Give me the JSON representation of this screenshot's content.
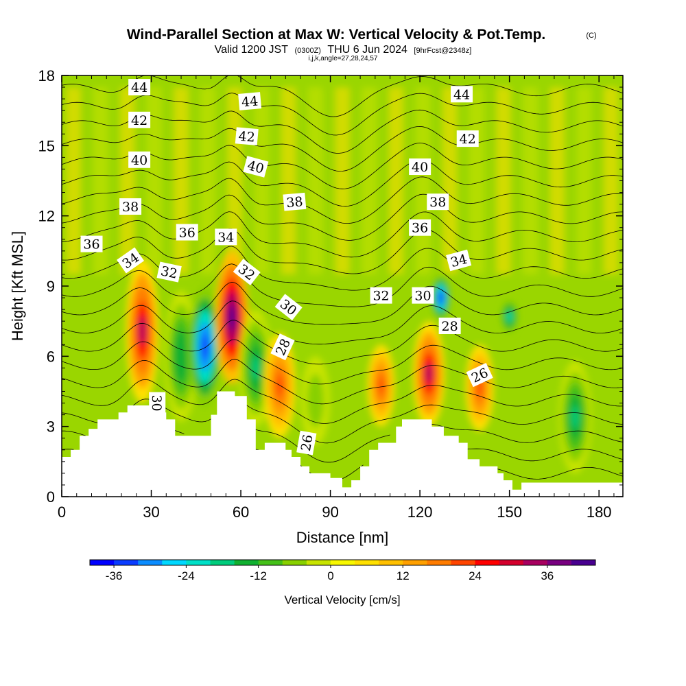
{
  "title": {
    "main": "Wind-Parallel Section at Max W: Vertical Velocity & Pot.Temp.",
    "copyright": "(C)",
    "valid_prefix": "Valid 1200 JST",
    "valid_utc": "(0300Z)",
    "valid_date": "THU 6 Jun 2024",
    "forecast": "[9hrFcst@2348z]",
    "indices": "i,j,k,angle=27,28,24,57"
  },
  "colorbar": {
    "title": "Vertical Velocity [cm/s]",
    "tick_labels": [
      "-36",
      "-24",
      "-12",
      "0",
      "12",
      "24",
      "36"
    ],
    "tick_values": [
      -36,
      -24,
      -12,
      0,
      12,
      24,
      36
    ],
    "min": -40,
    "max": 44,
    "step": 4,
    "colors": [
      "#0000ff",
      "#0a3cff",
      "#0a8cff",
      "#00d8ff",
      "#00e0c8",
      "#00cc7c",
      "#10b030",
      "#44c018",
      "#88d000",
      "#c8e400",
      "#f8f800",
      "#ffe000",
      "#ffc000",
      "#ffa000",
      "#ff7c00",
      "#ff4400",
      "#ff0000",
      "#d4002c",
      "#a80060",
      "#780080",
      "#480090"
    ]
  },
  "chart_data": {
    "type": "heatmap",
    "title": "Wind-Parallel Section at Max W: Vertical Velocity & Pot.Temp.",
    "xlabel": "Distance [nm]",
    "ylabel": "Height [Kft MSL]",
    "xlim": [
      0,
      188
    ],
    "ylim": [
      0,
      18
    ],
    "x_ticks": [
      0,
      30,
      60,
      90,
      120,
      150,
      180
    ],
    "y_ticks": [
      0,
      3,
      6,
      9,
      12,
      15,
      18
    ],
    "grid": false,
    "fill_variable": "Vertical Velocity [cm/s]",
    "fill_range": [
      -40,
      44
    ],
    "vertical_velocity_features": [
      {
        "x": 27,
        "bottom": 4.0,
        "top": 10.2,
        "peak": 32
      },
      {
        "x": 40,
        "bottom": 3.2,
        "top": 8.8,
        "peak": -16
      },
      {
        "x": 48,
        "bottom": 3.8,
        "top": 9.0,
        "peak": -36
      },
      {
        "x": 57,
        "bottom": 4.8,
        "top": 10.5,
        "peak": 42
      },
      {
        "x": 65,
        "bottom": 3.0,
        "top": 8.0,
        "peak": -18
      },
      {
        "x": 73,
        "bottom": 2.5,
        "top": 7.0,
        "peak": 22
      },
      {
        "x": 85,
        "bottom": 2.2,
        "top": 6.0,
        "peak": -8
      },
      {
        "x": 107,
        "bottom": 3.0,
        "top": 6.5,
        "peak": 22
      },
      {
        "x": 123,
        "bottom": 3.0,
        "top": 7.5,
        "peak": 32
      },
      {
        "x": 127,
        "bottom": 7.5,
        "top": 9.5,
        "peak": -38
      },
      {
        "x": 140,
        "bottom": 2.8,
        "top": 6.5,
        "peak": 22
      },
      {
        "x": 150,
        "bottom": 7.0,
        "top": 8.4,
        "peak": -24
      },
      {
        "x": 172,
        "bottom": 1.0,
        "top": 5.8,
        "peak": -20
      }
    ],
    "terrain": [
      {
        "x": 0,
        "h": 1.7
      },
      {
        "x": 3,
        "h": 2.0
      },
      {
        "x": 6,
        "h": 2.6
      },
      {
        "x": 9,
        "h": 2.9
      },
      {
        "x": 12,
        "h": 3.3
      },
      {
        "x": 19,
        "h": 3.6
      },
      {
        "x": 22,
        "h": 3.9
      },
      {
        "x": 32,
        "h": 3.6
      },
      {
        "x": 35,
        "h": 3.3
      },
      {
        "x": 38,
        "h": 2.6
      },
      {
        "x": 50,
        "h": 3.5
      },
      {
        "x": 52,
        "h": 4.5
      },
      {
        "x": 58,
        "h": 4.3
      },
      {
        "x": 62,
        "h": 3.3
      },
      {
        "x": 65,
        "h": 2.0
      },
      {
        "x": 68,
        "h": 2.3
      },
      {
        "x": 75,
        "h": 2.0
      },
      {
        "x": 77,
        "h": 1.7
      },
      {
        "x": 80,
        "h": 1.3
      },
      {
        "x": 83,
        "h": 1.0
      },
      {
        "x": 90,
        "h": 0.8
      },
      {
        "x": 94,
        "h": 0.4
      },
      {
        "x": 97,
        "h": 0.7
      },
      {
        "x": 100,
        "h": 1.3
      },
      {
        "x": 103,
        "h": 2.0
      },
      {
        "x": 106,
        "h": 2.3
      },
      {
        "x": 112,
        "h": 3.0
      },
      {
        "x": 114,
        "h": 3.3
      },
      {
        "x": 124,
        "h": 3.0
      },
      {
        "x": 128,
        "h": 2.6
      },
      {
        "x": 133,
        "h": 2.3
      },
      {
        "x": 136,
        "h": 1.6
      },
      {
        "x": 140,
        "h": 1.3
      },
      {
        "x": 146,
        "h": 1.0
      },
      {
        "x": 148,
        "h": 0.7
      },
      {
        "x": 151,
        "h": 0.3
      },
      {
        "x": 154,
        "h": 0.6
      },
      {
        "x": 188,
        "h": 0.6
      }
    ],
    "potential_temperature_contours": {
      "unit": "C",
      "levels": [
        24,
        25,
        26,
        27,
        28,
        29,
        30,
        31,
        32,
        33,
        34,
        35,
        36,
        37,
        38,
        39,
        40,
        41,
        42,
        43,
        44,
        45
      ],
      "labels": [
        {
          "text": "44",
          "x": 26,
          "y": 17.5,
          "angle": 0
        },
        {
          "text": "42",
          "x": 26,
          "y": 16.1,
          "angle": 0
        },
        {
          "text": "40",
          "x": 26,
          "y": 14.4,
          "angle": 0
        },
        {
          "text": "38",
          "x": 23,
          "y": 12.4,
          "angle": 0
        },
        {
          "text": "36",
          "x": 10,
          "y": 10.8,
          "angle": 0
        },
        {
          "text": "34",
          "x": 23,
          "y": 10.1,
          "angle": -35
        },
        {
          "text": "32",
          "x": 36,
          "y": 9.6,
          "angle": 12
        },
        {
          "text": "30",
          "x": 32,
          "y": 4.0,
          "angle": 90
        },
        {
          "text": "36",
          "x": 42,
          "y": 11.3,
          "angle": 0
        },
        {
          "text": "34",
          "x": 55,
          "y": 11.1,
          "angle": 0
        },
        {
          "text": "44",
          "x": 63,
          "y": 16.9,
          "angle": -5
        },
        {
          "text": "42",
          "x": 62,
          "y": 15.4,
          "angle": 5
        },
        {
          "text": "40",
          "x": 65,
          "y": 14.1,
          "angle": 15
        },
        {
          "text": "38",
          "x": 78,
          "y": 12.6,
          "angle": -5
        },
        {
          "text": "32",
          "x": 62,
          "y": 9.6,
          "angle": 38
        },
        {
          "text": "30",
          "x": 76,
          "y": 8.1,
          "angle": 38
        },
        {
          "text": "28",
          "x": 74,
          "y": 6.4,
          "angle": -65
        },
        {
          "text": "26",
          "x": 82,
          "y": 2.3,
          "angle": -80
        },
        {
          "text": "32",
          "x": 107,
          "y": 8.6,
          "angle": 0
        },
        {
          "text": "30",
          "x": 121,
          "y": 8.6,
          "angle": 0
        },
        {
          "text": "28",
          "x": 130,
          "y": 7.3,
          "angle": 0
        },
        {
          "text": "26",
          "x": 140,
          "y": 5.2,
          "angle": -25
        },
        {
          "text": "34",
          "x": 133,
          "y": 10.1,
          "angle": -15
        },
        {
          "text": "36",
          "x": 120,
          "y": 11.5,
          "angle": 0
        },
        {
          "text": "38",
          "x": 126,
          "y": 12.6,
          "angle": 0
        },
        {
          "text": "40",
          "x": 120,
          "y": 14.1,
          "angle": 0
        },
        {
          "text": "42",
          "x": 136,
          "y": 15.3,
          "angle": 0
        },
        {
          "text": "44",
          "x": 134,
          "y": 17.2,
          "angle": 0
        }
      ]
    }
  }
}
